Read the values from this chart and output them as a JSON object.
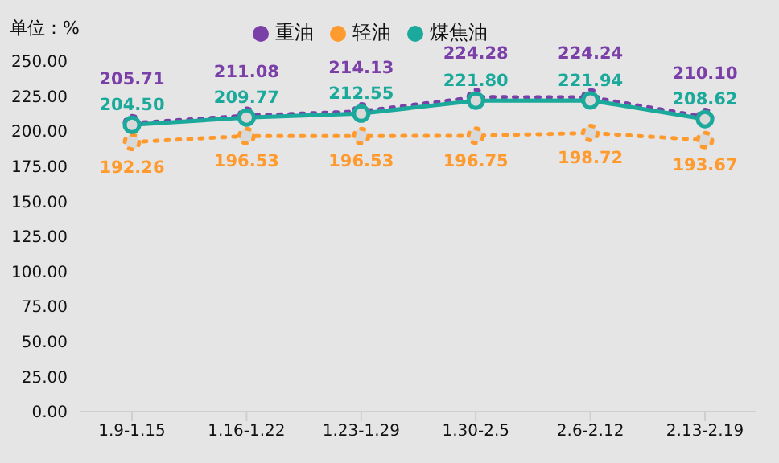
{
  "chart_data": {
    "type": "line",
    "ylabel": "单位：%",
    "categories": [
      "1.9-1.15",
      "1.16-1.22",
      "1.23-1.29",
      "1.30-2.5",
      "2.6-2.12",
      "2.13-2.19"
    ],
    "series": [
      {
        "name": "重油",
        "color": "#7b3fa8",
        "line_style": "dotted",
        "marker": "circle",
        "values": [
          205.71,
          211.08,
          214.13,
          224.28,
          224.24,
          210.1
        ],
        "value_labels": [
          "205.71",
          "211.08",
          "214.13",
          "224.28",
          "224.24",
          "210.10"
        ]
      },
      {
        "name": "轻油",
        "color": "#ff9a2e",
        "line_style": "dotted",
        "marker": "circle",
        "values": [
          192.26,
          196.53,
          196.53,
          196.75,
          198.72,
          193.67
        ],
        "value_labels": [
          "192.26",
          "196.53",
          "196.53",
          "196.75",
          "198.72",
          "193.67"
        ]
      },
      {
        "name": "煤焦油",
        "color": "#1aa99b",
        "line_style": "solid",
        "marker": "circle",
        "values": [
          204.5,
          209.77,
          212.55,
          221.8,
          221.94,
          208.62
        ],
        "value_labels": [
          "204.50",
          "209.77",
          "212.55",
          "221.80",
          "221.94",
          "208.62"
        ]
      }
    ],
    "ylim": [
      0,
      250
    ],
    "yticks": [
      {
        "value": 0,
        "label": "0.00"
      },
      {
        "value": 25,
        "label": "25.00"
      },
      {
        "value": 50,
        "label": "50.00"
      },
      {
        "value": 75,
        "label": "75.00"
      },
      {
        "value": 100,
        "label": "100.00"
      },
      {
        "value": 125,
        "label": "125.00"
      },
      {
        "value": 150,
        "label": "150.00"
      },
      {
        "value": 175,
        "label": "175.00"
      },
      {
        "value": 200,
        "label": "200.00"
      },
      {
        "value": 225,
        "label": "225.00"
      },
      {
        "value": 250,
        "label": "250.00"
      }
    ],
    "grid": false,
    "legend": "top"
  }
}
